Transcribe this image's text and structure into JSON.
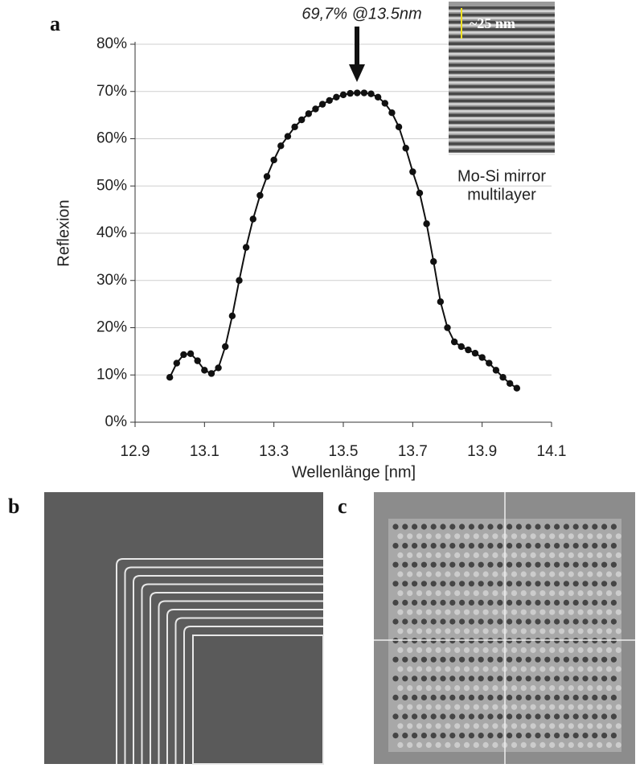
{
  "chart_data": {
    "type": "line",
    "annotation": "69,7% @13.5nm",
    "x_label": "Wellenlänge [nm]",
    "y_label": "Reflexion",
    "x": [
      13.0,
      13.02,
      13.04,
      13.06,
      13.08,
      13.1,
      13.12,
      13.14,
      13.16,
      13.18,
      13.2,
      13.22,
      13.24,
      13.26,
      13.28,
      13.3,
      13.32,
      13.34,
      13.36,
      13.38,
      13.4,
      13.42,
      13.44,
      13.46,
      13.48,
      13.5,
      13.52,
      13.54,
      13.56,
      13.58,
      13.6,
      13.62,
      13.64,
      13.66,
      13.68,
      13.7,
      13.72,
      13.74,
      13.76,
      13.78,
      13.8,
      13.82,
      13.84,
      13.86,
      13.88,
      13.9,
      13.92,
      13.94,
      13.96,
      13.98,
      14.0
    ],
    "values": [
      9.5,
      12.5,
      14.3,
      14.5,
      13,
      11,
      10.3,
      11.5,
      16,
      22.5,
      30,
      37,
      43,
      48,
      52,
      55.5,
      58.5,
      60.5,
      62.5,
      64,
      65.3,
      66.3,
      67.3,
      68.1,
      68.8,
      69.3,
      69.6,
      69.7,
      69.7,
      69.5,
      68.8,
      67.5,
      65.5,
      62.5,
      58,
      53,
      48.5,
      42,
      34,
      25.5,
      20,
      17,
      16,
      15.3,
      14.6,
      13.7,
      12.5,
      11,
      9.5,
      8.2,
      7.2
    ],
    "color": "#111111",
    "xlim": [
      12.9,
      14.1
    ],
    "xticks": [
      12.9,
      13.1,
      13.3,
      13.5,
      13.7,
      13.9,
      14.1
    ],
    "ylim": [
      0,
      80
    ],
    "yticks": [
      {
        "value": 0,
        "label": "0%"
      },
      {
        "value": 10,
        "label": "10%"
      },
      {
        "value": 20,
        "label": "20%"
      },
      {
        "value": 30,
        "label": "30%"
      },
      {
        "value": 40,
        "label": "40%"
      },
      {
        "value": 50,
        "label": "50%"
      },
      {
        "value": 60,
        "label": "60%"
      },
      {
        "value": 70,
        "label": "70%"
      },
      {
        "value": 80,
        "label": "80%"
      }
    ],
    "grid": true,
    "markers": true
  },
  "panel_labels": [
    "a",
    "b",
    "c"
  ],
  "inset": {
    "scale_label": "~25 nm",
    "caption": [
      "Mo-Si mirror",
      "multilayer"
    ]
  }
}
